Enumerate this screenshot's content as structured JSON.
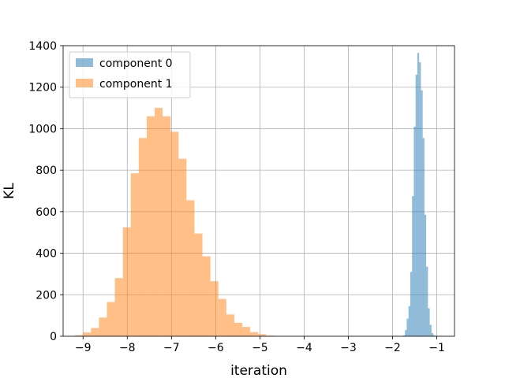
{
  "chart_data": {
    "type": "bar",
    "subtype": "histogram",
    "title": "",
    "xlabel": "iteration",
    "ylabel": "KL",
    "xlim": [
      -9.45,
      -0.6
    ],
    "ylim": [
      0,
      1400
    ],
    "xticks": [
      -9,
      -8,
      -7,
      -6,
      -5,
      -4,
      -3,
      -2,
      -1
    ],
    "xtick_labels": [
      "−9",
      "−8",
      "−7",
      "−6",
      "−5",
      "−4",
      "−3",
      "−2",
      "−1"
    ],
    "yticks": [
      0,
      200,
      400,
      600,
      800,
      1000,
      1200,
      1400
    ],
    "ytick_labels": [
      "0",
      "200",
      "400",
      "600",
      "800",
      "1000",
      "1200",
      "1400"
    ],
    "grid": true,
    "legend_position": "top-left",
    "series": [
      {
        "name": "component 0",
        "color": "#1f77b4",
        "alpha": 0.5,
        "bins": [
          [
            -1.76,
            -1.72,
            4
          ],
          [
            -1.72,
            -1.68,
            30
          ],
          [
            -1.68,
            -1.64,
            85
          ],
          [
            -1.64,
            -1.6,
            145
          ],
          [
            -1.6,
            -1.56,
            310
          ],
          [
            -1.56,
            -1.52,
            675
          ],
          [
            -1.52,
            -1.48,
            1010
          ],
          [
            -1.48,
            -1.44,
            1260
          ],
          [
            -1.44,
            -1.4,
            1365
          ],
          [
            -1.4,
            -1.36,
            1320
          ],
          [
            -1.36,
            -1.32,
            1185
          ],
          [
            -1.32,
            -1.28,
            955
          ],
          [
            -1.28,
            -1.24,
            585
          ],
          [
            -1.24,
            -1.2,
            335
          ],
          [
            -1.2,
            -1.16,
            135
          ],
          [
            -1.16,
            -1.12,
            55
          ],
          [
            -1.12,
            -1.08,
            15
          ],
          [
            -1.08,
            -1.04,
            5
          ]
        ]
      },
      {
        "name": "component 1",
        "color": "#ff7f0e",
        "alpha": 0.5,
        "bins": [
          [
            -9.18,
            -9.0,
            5
          ],
          [
            -9.0,
            -8.82,
            18
          ],
          [
            -8.82,
            -8.64,
            40
          ],
          [
            -8.64,
            -8.46,
            90
          ],
          [
            -8.46,
            -8.28,
            165
          ],
          [
            -8.28,
            -8.1,
            280
          ],
          [
            -8.1,
            -7.92,
            525
          ],
          [
            -7.92,
            -7.74,
            785
          ],
          [
            -7.74,
            -7.56,
            955
          ],
          [
            -7.56,
            -7.38,
            1060
          ],
          [
            -7.38,
            -7.2,
            1100
          ],
          [
            -7.2,
            -7.02,
            1060
          ],
          [
            -7.02,
            -6.84,
            985
          ],
          [
            -6.84,
            -6.66,
            855
          ],
          [
            -6.66,
            -6.48,
            655
          ],
          [
            -6.48,
            -6.3,
            495
          ],
          [
            -6.3,
            -6.12,
            385
          ],
          [
            -6.12,
            -5.94,
            265
          ],
          [
            -5.94,
            -5.76,
            180
          ],
          [
            -5.76,
            -5.58,
            105
          ],
          [
            -5.58,
            -5.4,
            65
          ],
          [
            -5.4,
            -5.22,
            45
          ],
          [
            -5.22,
            -5.04,
            20
          ],
          [
            -5.04,
            -4.86,
            10
          ],
          [
            -4.86,
            -4.68,
            3
          ]
        ]
      }
    ]
  }
}
